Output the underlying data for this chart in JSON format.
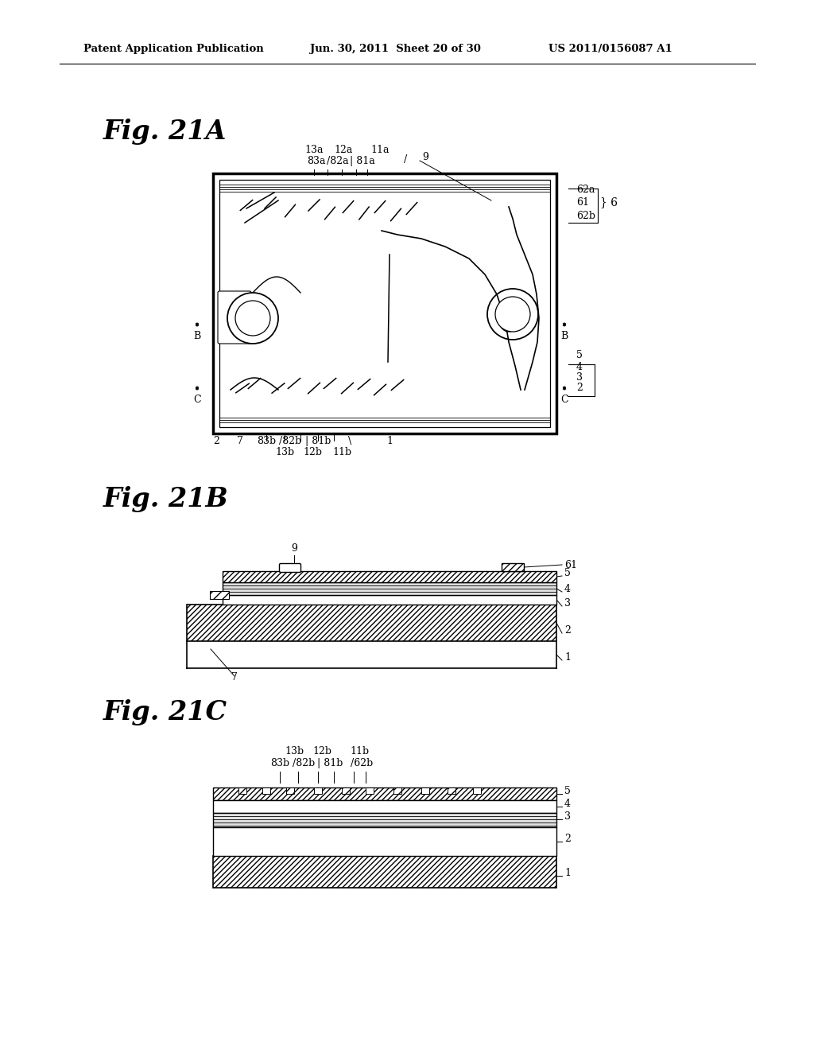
{
  "bg_color": "#ffffff",
  "header_left": "Patent Application Publication",
  "header_mid": "Jun. 30, 2011  Sheet 20 of 30",
  "header_right": "US 2011/0156087 A1"
}
